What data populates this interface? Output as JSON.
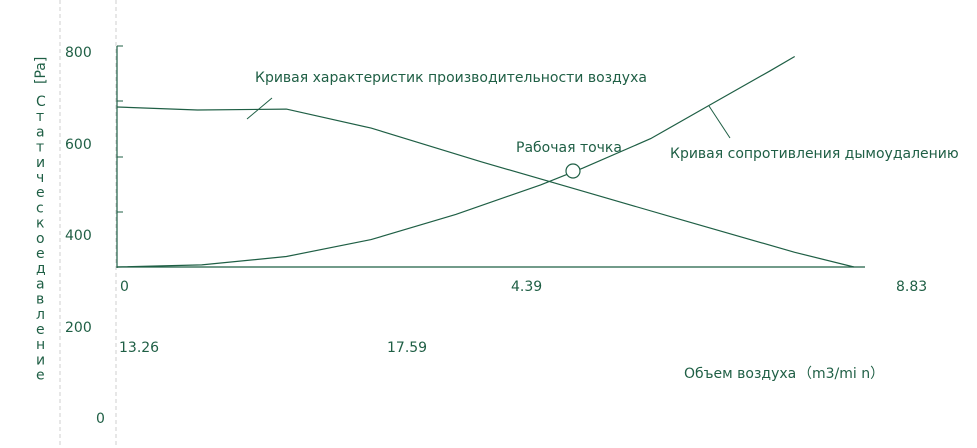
{
  "colors": {
    "line": "#1f5f45",
    "text": "#1f5f45",
    "guide": "#cfcfcf",
    "background": "#ffffff"
  },
  "chart_data": {
    "type": "line",
    "y_axis": {
      "unit": "[Pa]",
      "label": "Статическое давление",
      "ticks": [
        "800",
        "600",
        "400",
        "200",
        "0"
      ],
      "ylim": [
        0,
        800
      ]
    },
    "x_axis": {
      "label": "Объем воздуха",
      "unit": "（m3/mi n）",
      "ticks_row1": [
        "0",
        "4.39",
        "8.83"
      ],
      "ticks_row2": [
        "13.26",
        "17.59"
      ]
    },
    "series": [
      {
        "name": "Кривая характеристик производительности воздуха",
        "points": [
          [
            0.0,
            655
          ],
          [
            0.95,
            648
          ],
          [
            2.0,
            650
          ],
          [
            3.0,
            605
          ],
          [
            4.3,
            525
          ],
          [
            5.5,
            455
          ],
          [
            6.7,
            385
          ],
          [
            8.0,
            310
          ],
          [
            8.7,
            275
          ]
        ]
      },
      {
        "name": "Кривая сопротивления дымоудалению",
        "points": [
          [
            0.0,
            275
          ],
          [
            1.0,
            280
          ],
          [
            2.0,
            300
          ],
          [
            3.0,
            340
          ],
          [
            4.0,
            400
          ],
          [
            5.0,
            470
          ],
          [
            5.5,
            510
          ],
          [
            6.3,
            580
          ],
          [
            7.0,
            660
          ],
          [
            7.7,
            740
          ],
          [
            8.0,
            775
          ]
        ]
      }
    ],
    "annotations": [
      {
        "text": "Рабочая точка",
        "x": 5.4,
        "y": 520
      }
    ]
  }
}
